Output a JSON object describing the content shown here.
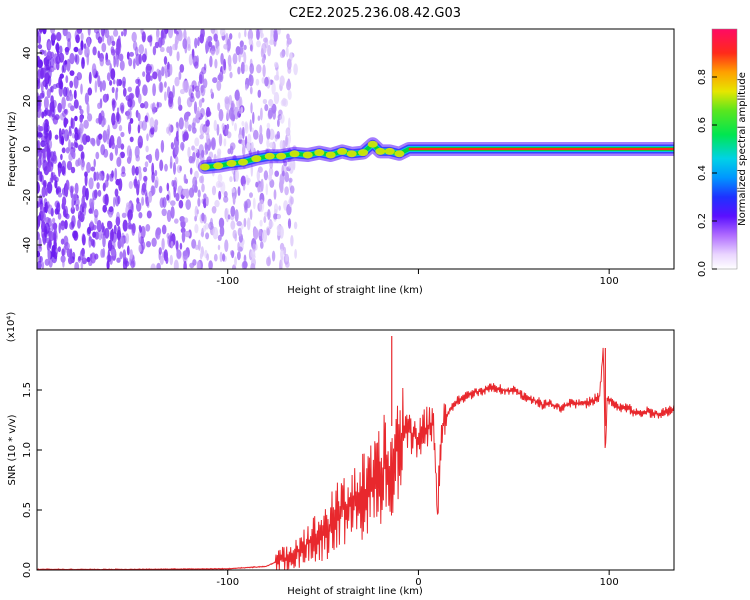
{
  "figure_title": "C2E2.2025.236.08.42.G03",
  "chart_data": [
    {
      "type": "heatmap",
      "name": "spectrogram",
      "title": "C2E2.2025.236.08.42.G03",
      "xlabel": "Height of straight line (km)",
      "ylabel": "Frequency (Hz)",
      "xlim": [
        -200,
        134
      ],
      "ylim": [
        -50,
        50
      ],
      "x_ticks": [
        -100,
        0,
        100
      ],
      "x_tick_labels": [
        "-100",
        "",
        "100"
      ],
      "y_ticks": [
        -40,
        -20,
        0,
        20,
        40
      ],
      "y_tick_labels": [
        "-40",
        "-20",
        "0",
        "20",
        "40"
      ],
      "noise_region_x": [
        -200,
        -80
      ],
      "carrier_track": [
        {
          "x": -112,
          "y": -7.5
        },
        {
          "x": -105,
          "y": -7
        },
        {
          "x": -98,
          "y": -6
        },
        {
          "x": -92,
          "y": -5.5
        },
        {
          "x": -85,
          "y": -4
        },
        {
          "x": -78,
          "y": -3
        },
        {
          "x": -72,
          "y": -3
        },
        {
          "x": -65,
          "y": -2
        },
        {
          "x": -58,
          "y": -2.5
        },
        {
          "x": -52,
          "y": -1.5
        },
        {
          "x": -46,
          "y": -2.5
        },
        {
          "x": -40,
          "y": -1
        },
        {
          "x": -35,
          "y": -2
        },
        {
          "x": -29,
          "y": -1.5
        },
        {
          "x": -24,
          "y": 2
        },
        {
          "x": -20,
          "y": -1
        },
        {
          "x": -15,
          "y": -1
        },
        {
          "x": -10,
          "y": -2
        },
        {
          "x": -5,
          "y": 0
        },
        {
          "x": 0,
          "y": 0
        },
        {
          "x": 134,
          "y": 0
        }
      ],
      "colorbar": {
        "label": "Normalized spectral amplitude",
        "range": [
          0.0,
          1.0
        ],
        "ticks": [
          0.0,
          0.2,
          0.4,
          0.6,
          0.8
        ],
        "tick_labels": [
          "0.0",
          "0.2",
          "0.4",
          "0.6",
          "0.8"
        ]
      }
    },
    {
      "type": "line",
      "name": "snr",
      "xlabel": "Height of straight line (km)",
      "ylabel": "SNR (10 * v/v)",
      "y_scale_label": "(x10⁴)",
      "xlim": [
        -200,
        134
      ],
      "ylim": [
        0,
        2.0
      ],
      "x_ticks": [
        -100,
        0,
        100
      ],
      "x_tick_labels": [
        "-100",
        "0",
        "100"
      ],
      "y_ticks": [
        0.0,
        0.5,
        1.0,
        1.5
      ],
      "y_tick_labels": [
        "0.0",
        "0.5",
        "1.0",
        "1.5"
      ],
      "series": [
        {
          "name": "SNR",
          "color": "#e8282d",
          "x": [
            -200,
            -150,
            -100,
            -80,
            -70,
            -60,
            -50,
            -45,
            -40,
            -35,
            -30,
            -25,
            -20,
            -18,
            -15,
            -12,
            -10,
            -8,
            -5,
            0,
            5,
            8,
            10,
            12,
            15,
            20,
            25,
            30,
            35,
            40,
            45,
            50,
            55,
            60,
            65,
            70,
            75,
            80,
            85,
            90,
            95,
            97,
            98,
            99,
            100,
            105,
            110,
            115,
            120,
            125,
            130,
            134
          ],
          "values": [
            0.005,
            0.005,
            0.01,
            0.03,
            0.1,
            0.2,
            0.3,
            0.4,
            0.5,
            0.55,
            0.6,
            0.65,
            0.75,
            0.9,
            0.7,
            1.05,
            1.0,
            1.2,
            1.15,
            1.1,
            1.2,
            1.25,
            0.45,
            1.15,
            1.3,
            1.4,
            1.45,
            1.48,
            1.5,
            1.52,
            1.5,
            1.5,
            1.45,
            1.42,
            1.38,
            1.38,
            1.35,
            1.4,
            1.38,
            1.4,
            1.45,
            1.85,
            0.92,
            1.45,
            1.42,
            1.35,
            1.35,
            1.3,
            1.32,
            1.3,
            1.32,
            1.33
          ]
        }
      ],
      "annotations": [
        {
          "x": -14,
          "value": 1.95,
          "label": ""
        },
        {
          "x": 98,
          "value": 1.85,
          "label": ""
        }
      ]
    }
  ],
  "colors": {
    "snr_line": "#e8282d",
    "noise_speckle": "#7a2ef0",
    "carrier": "#00d23c",
    "carrier_core": "#ff2a1a"
  }
}
